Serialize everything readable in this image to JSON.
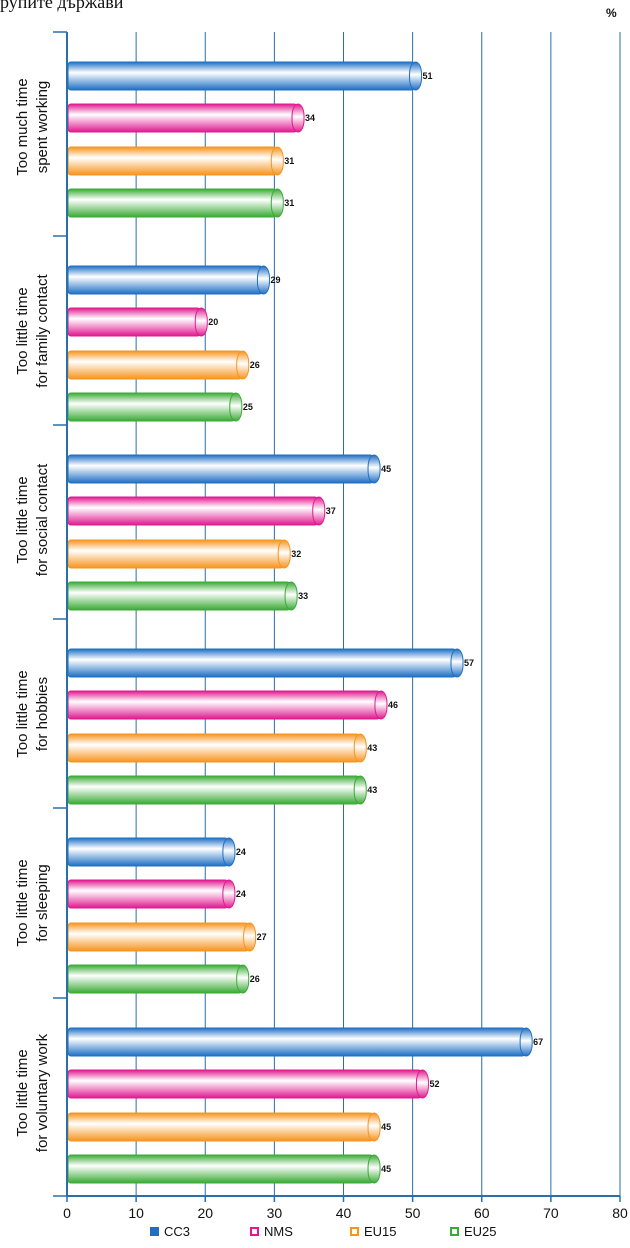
{
  "page": {
    "title_fragment": "рупите държави",
    "unit": "%"
  },
  "chart_data": {
    "type": "bar",
    "orientation": "horizontal",
    "categories": [
      [
        "Too much time",
        "spent working"
      ],
      [
        "Too little time",
        "for family contact"
      ],
      [
        "Too little time",
        "for social contact"
      ],
      [
        "Too little time",
        "for hobbies"
      ],
      [
        "Too little time",
        "for sleeping"
      ],
      [
        "Too little time",
        "for voluntary work"
      ]
    ],
    "series": [
      {
        "name": "CC3",
        "color": "#1e6fc4",
        "light": "#ffffff",
        "values": [
          51,
          29,
          45,
          57,
          24,
          67
        ]
      },
      {
        "name": "NMS",
        "color": "#e0198f",
        "light": "#ffffff",
        "values": [
          34,
          20,
          37,
          46,
          24,
          52
        ]
      },
      {
        "name": "EU15",
        "color": "#f7941d",
        "light": "#ffffff",
        "values": [
          31,
          26,
          32,
          43,
          27,
          45
        ]
      },
      {
        "name": "EU25",
        "color": "#3aaa35",
        "light": "#ffffff",
        "values": [
          31,
          25,
          33,
          43,
          26,
          45
        ]
      }
    ],
    "xlim": [
      0,
      80
    ],
    "xticks": [
      0,
      10,
      20,
      30,
      40,
      50,
      60,
      70,
      80
    ],
    "xlabel": "%",
    "grid": true,
    "legend_position": "bottom"
  }
}
